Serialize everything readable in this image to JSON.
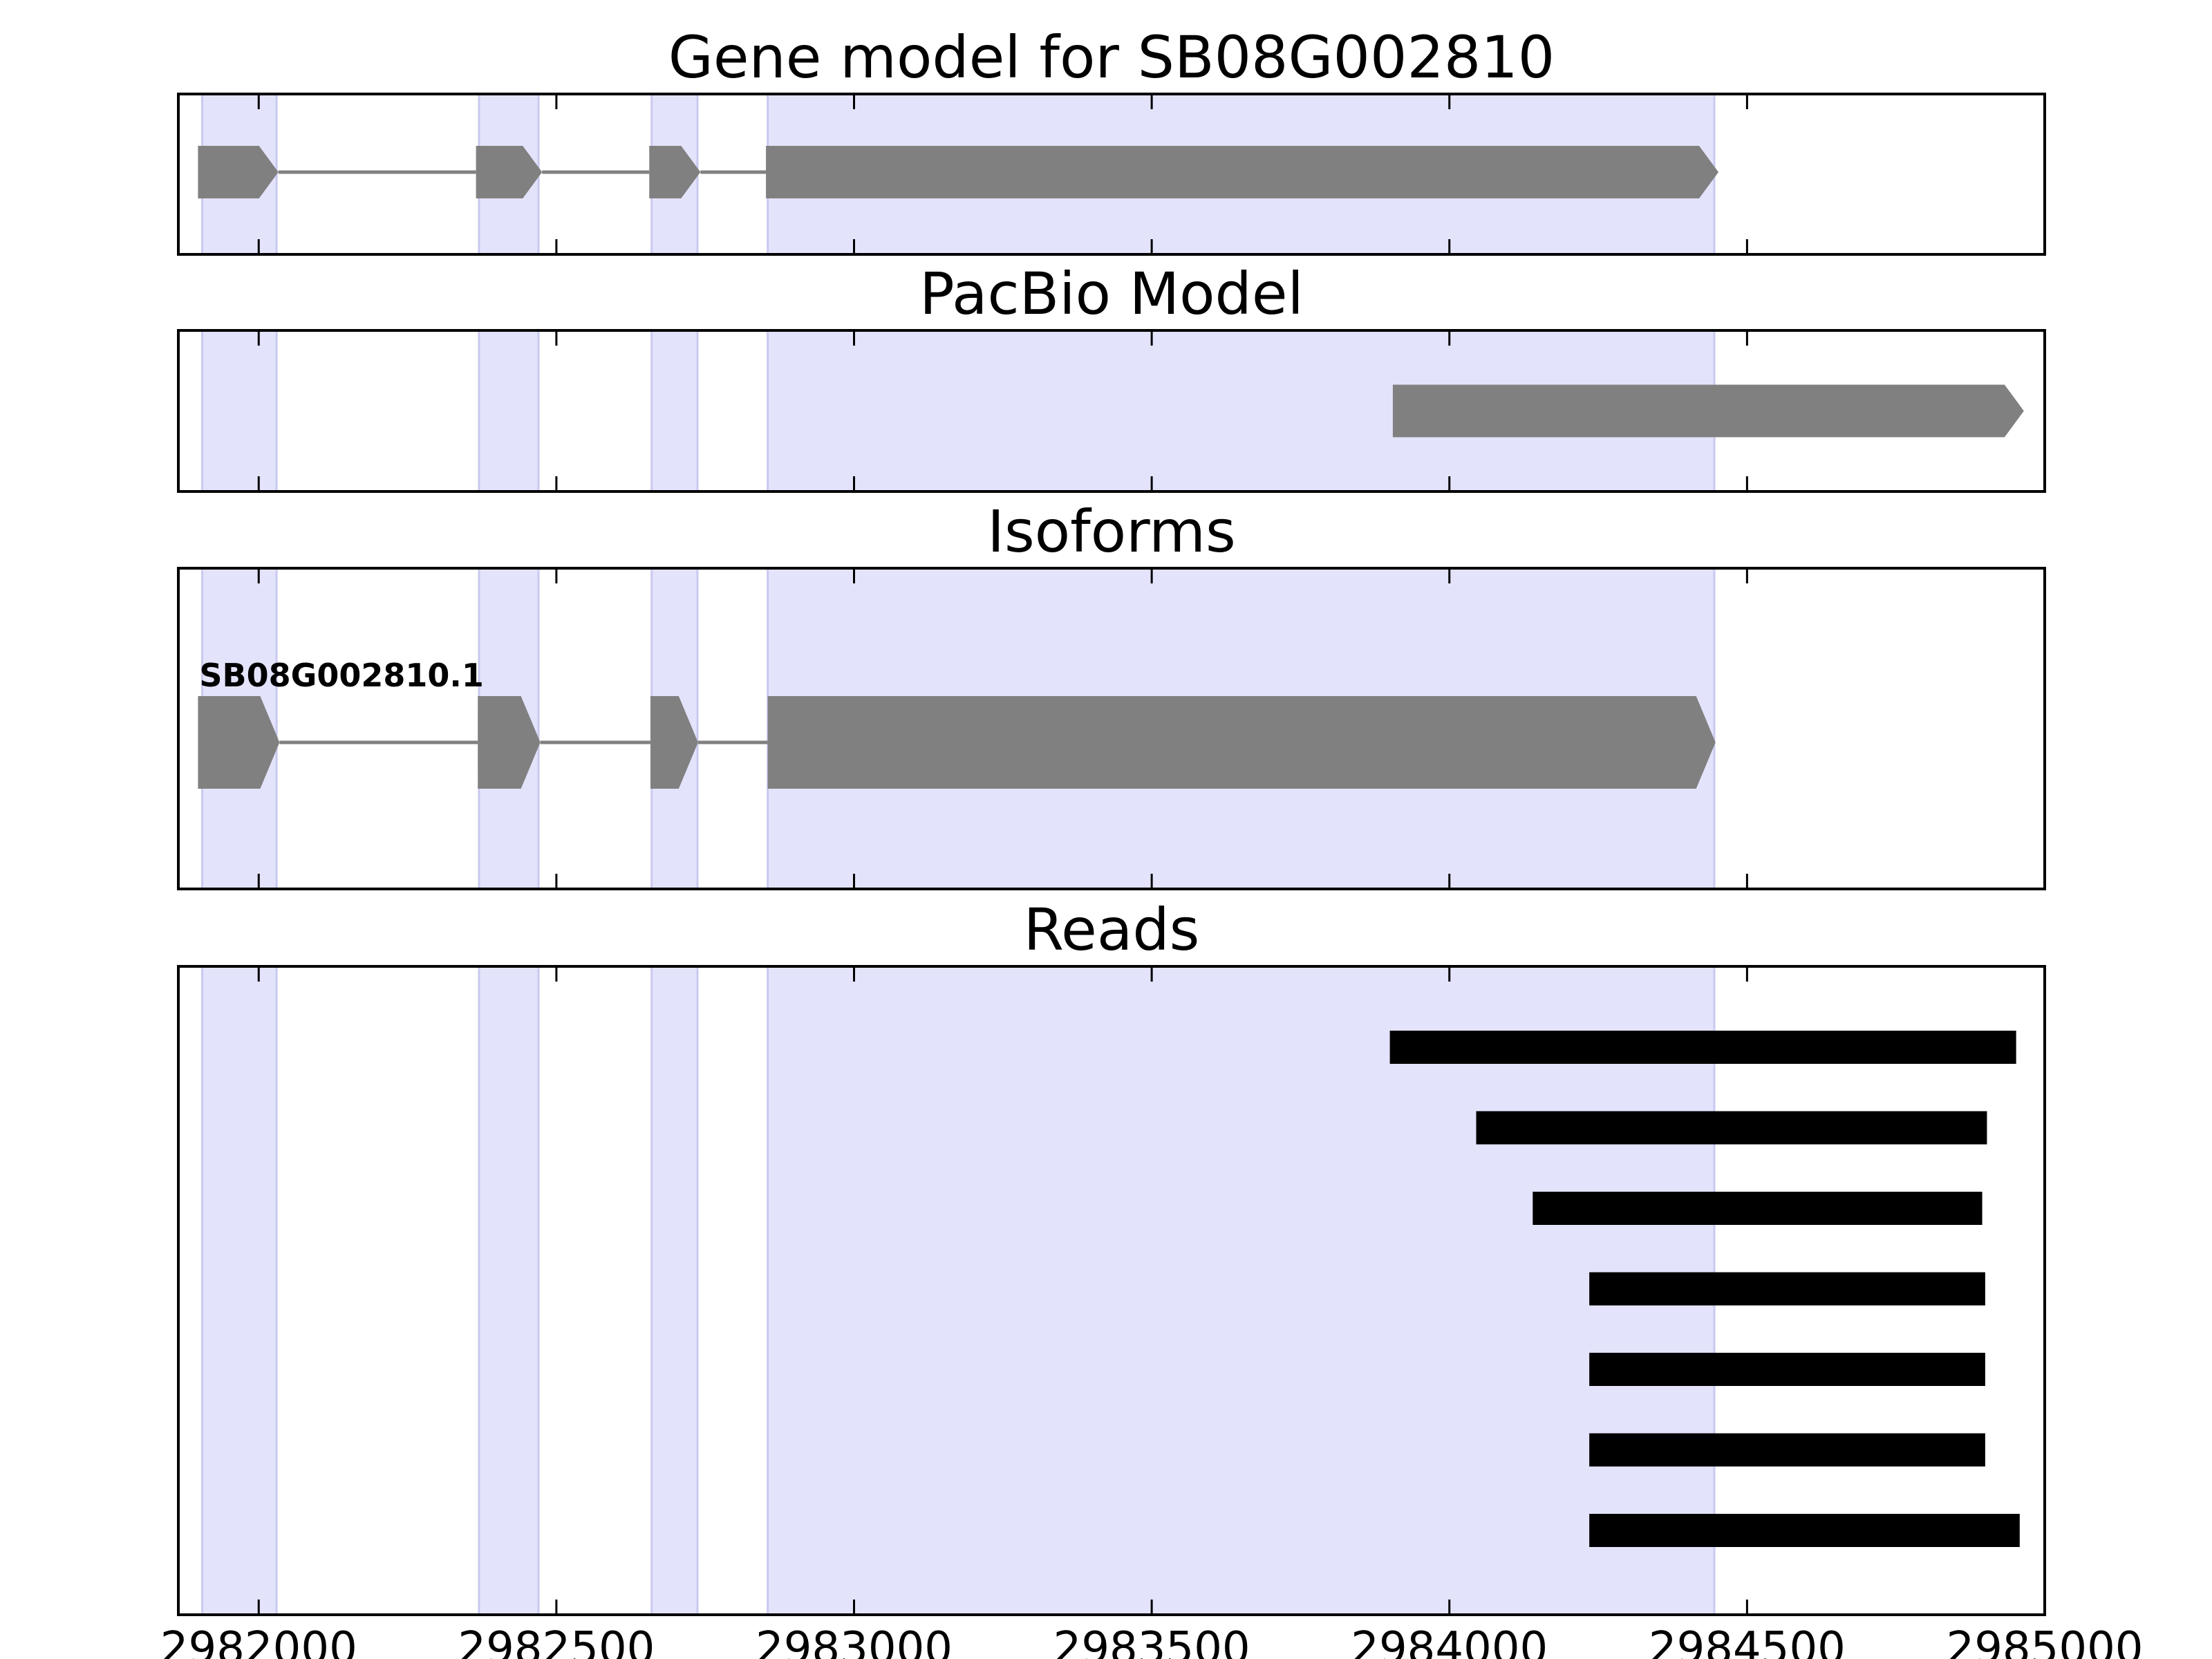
{
  "chart_data": {
    "type": "gene-track",
    "xlim": [
      2981865,
      2985000
    ],
    "x_ticks": [
      2982000,
      2982500,
      2983000,
      2983500,
      2984000,
      2984500,
      2985000
    ],
    "x_tick_labels": [
      "2982000",
      "2982500",
      "2983000",
      "2983500",
      "2984000",
      "2984500",
      "2985000"
    ],
    "exon_highlights": [
      [
        2981905,
        2982030
      ],
      [
        2982370,
        2982470
      ],
      [
        2982660,
        2982737
      ],
      [
        2982855,
        2984445
      ]
    ],
    "highlight_color": "#e3e3fc",
    "feature_color": "#808080",
    "read_color": "#000000",
    "panels": [
      {
        "title": "Gene model for SB08G002810",
        "kind": "gene",
        "models": [
          {
            "label": "",
            "exons": [
              [
                2981898,
                2982033
              ],
              [
                2982365,
                2982476
              ],
              [
                2982656,
                2982742
              ],
              [
                2982852,
                2984452
              ]
            ]
          }
        ]
      },
      {
        "title": "PacBio Model",
        "kind": "gene",
        "models": [
          {
            "label": "",
            "exons": [
              [
                2983905,
                2984965
              ]
            ]
          }
        ]
      },
      {
        "title": "Isoforms",
        "kind": "gene",
        "models": [
          {
            "label": "SB08G002810.1",
            "exons": [
              [
                2981898,
                2982035
              ],
              [
                2982368,
                2982473
              ],
              [
                2982658,
                2982738
              ],
              [
                2982855,
                2984447
              ]
            ]
          }
        ]
      },
      {
        "title": "Reads",
        "kind": "reads",
        "reads": [
          [
            2983900,
            2984952
          ],
          [
            2984045,
            2984903
          ],
          [
            2984140,
            2984895
          ],
          [
            2984235,
            2984900
          ],
          [
            2984235,
            2984900
          ],
          [
            2984235,
            2984900
          ],
          [
            2984235,
            2984958
          ]
        ]
      }
    ]
  }
}
